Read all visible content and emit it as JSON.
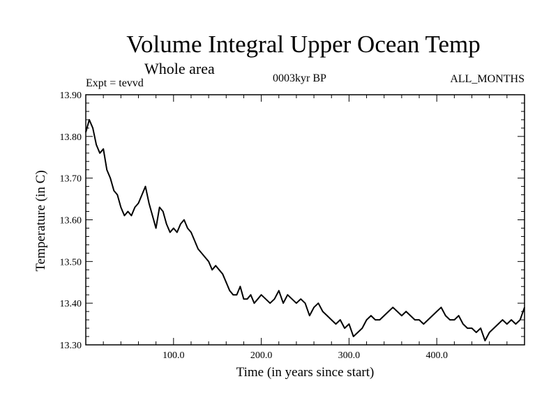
{
  "chart_data": {
    "type": "line",
    "title": "Volume Integral Upper Ocean Temp",
    "subtitle": "Whole area",
    "left_label": "Expt = tevvd",
    "center_label": "0003kyr BP",
    "right_label": "ALL_MONTHS",
    "xlabel": "Time (in years since start)",
    "ylabel": "Temperature (in C)",
    "xlim": [
      0,
      500
    ],
    "ylim": [
      13.3,
      13.9
    ],
    "x_ticks": [
      {
        "value": 100,
        "label": "100.0"
      },
      {
        "value": 200,
        "label": "200.0"
      },
      {
        "value": 300,
        "label": "300.0"
      },
      {
        "value": 400,
        "label": "400.0"
      }
    ],
    "y_ticks": [
      {
        "value": 13.3,
        "label": "13.30"
      },
      {
        "value": 13.4,
        "label": "13.40"
      },
      {
        "value": 13.5,
        "label": "13.50"
      },
      {
        "value": 13.6,
        "label": "13.60"
      },
      {
        "value": 13.7,
        "label": "13.70"
      },
      {
        "value": 13.8,
        "label": "13.80"
      },
      {
        "value": 13.9,
        "label": "13.90"
      }
    ],
    "grid": false,
    "series": [
      {
        "name": "temperature",
        "color": "#000000",
        "x": [
          0,
          4,
          8,
          12,
          16,
          20,
          24,
          28,
          32,
          36,
          40,
          44,
          48,
          52,
          56,
          60,
          64,
          68,
          72,
          76,
          80,
          84,
          88,
          92,
          96,
          100,
          104,
          108,
          112,
          116,
          120,
          124,
          128,
          132,
          136,
          140,
          144,
          148,
          152,
          156,
          160,
          164,
          168,
          172,
          176,
          180,
          184,
          188,
          192,
          196,
          200,
          205,
          210,
          215,
          220,
          225,
          230,
          235,
          240,
          245,
          250,
          255,
          260,
          265,
          270,
          275,
          280,
          285,
          290,
          295,
          300,
          305,
          310,
          315,
          320,
          325,
          330,
          335,
          340,
          345,
          350,
          355,
          360,
          365,
          370,
          375,
          380,
          385,
          390,
          395,
          400,
          405,
          410,
          415,
          420,
          425,
          430,
          435,
          440,
          445,
          450,
          455,
          460,
          465,
          470,
          475,
          480,
          485,
          490,
          495,
          500
        ],
        "values": [
          13.81,
          13.84,
          13.82,
          13.78,
          13.76,
          13.77,
          13.72,
          13.7,
          13.67,
          13.66,
          13.63,
          13.61,
          13.62,
          13.61,
          13.63,
          13.64,
          13.66,
          13.68,
          13.64,
          13.61,
          13.58,
          13.63,
          13.62,
          13.59,
          13.57,
          13.58,
          13.57,
          13.59,
          13.6,
          13.58,
          13.57,
          13.55,
          13.53,
          13.52,
          13.51,
          13.5,
          13.48,
          13.49,
          13.48,
          13.47,
          13.45,
          13.43,
          13.42,
          13.42,
          13.44,
          13.41,
          13.41,
          13.42,
          13.4,
          13.41,
          13.42,
          13.41,
          13.4,
          13.41,
          13.43,
          13.4,
          13.42,
          13.41,
          13.4,
          13.41,
          13.4,
          13.37,
          13.39,
          13.4,
          13.38,
          13.37,
          13.36,
          13.35,
          13.36,
          13.34,
          13.35,
          13.32,
          13.33,
          13.34,
          13.36,
          13.37,
          13.36,
          13.36,
          13.37,
          13.38,
          13.39,
          13.38,
          13.37,
          13.38,
          13.37,
          13.36,
          13.36,
          13.35,
          13.36,
          13.37,
          13.38,
          13.39,
          13.37,
          13.36,
          13.36,
          13.37,
          13.35,
          13.34,
          13.34,
          13.33,
          13.34,
          13.31,
          13.33,
          13.34,
          13.35,
          13.36,
          13.35,
          13.36,
          13.35,
          13.36,
          13.39
        ]
      }
    ]
  }
}
